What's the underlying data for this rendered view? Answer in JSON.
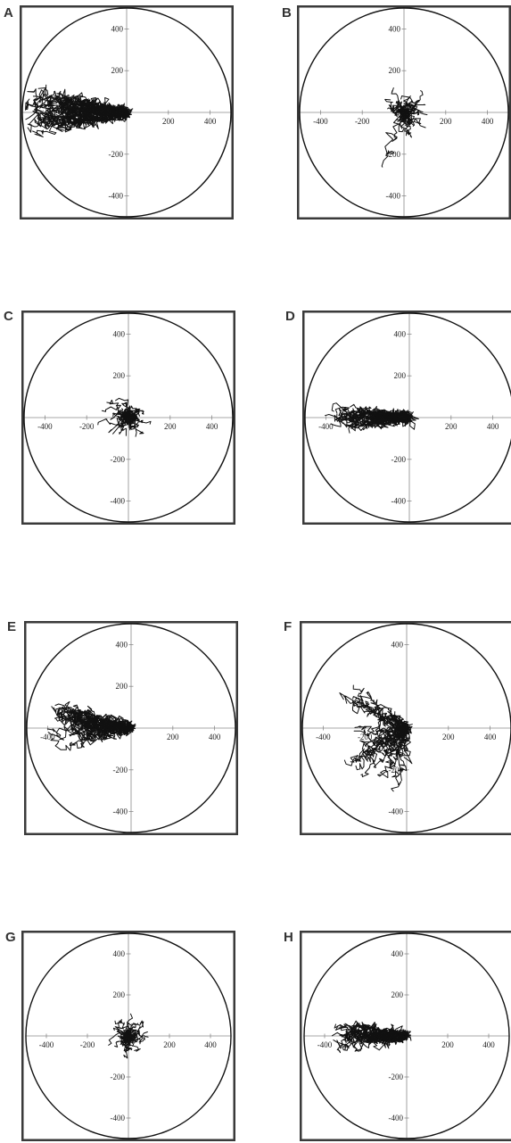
{
  "figure": {
    "colors": {
      "frame": "#3a3a3a",
      "ink": "#111111",
      "axis": "#8a8a8a"
    }
  },
  "chart_data": [
    {
      "panel": "A",
      "type": "line",
      "subtype": "cell-migration-tracks",
      "xlim": [
        -500,
        500
      ],
      "ylim": [
        -500,
        500
      ],
      "xticks": [
        "-400",
        "200",
        "400"
      ],
      "yticks": [
        "400",
        "200",
        "-200",
        "-400"
      ],
      "circle_radius": 500,
      "n_tracks": 40,
      "track_endpoint_direction_deg": 180,
      "track_endpoint_spread_deg": 28,
      "track_length_range": [
        260,
        500
      ],
      "grid": false,
      "legend": "none"
    },
    {
      "panel": "B",
      "type": "line",
      "subtype": "cell-migration-tracks",
      "xlim": [
        -500,
        500
      ],
      "ylim": [
        -500,
        500
      ],
      "xticks": [
        "-400",
        "-200",
        "200",
        "400"
      ],
      "yticks": [
        "400",
        "200",
        "-200",
        "-400"
      ],
      "circle_radius": 500,
      "n_tracks": 40,
      "track_endpoint_direction_deg": 0,
      "track_endpoint_spread_deg": 360,
      "track_length_range": [
        20,
        130
      ],
      "outlier_track_to": [
        -100,
        -250
      ],
      "grid": false,
      "legend": "none"
    },
    {
      "panel": "C",
      "type": "line",
      "subtype": "cell-migration-tracks",
      "xlim": [
        -500,
        500
      ],
      "ylim": [
        -500,
        500
      ],
      "xticks": [
        "-400",
        "-200",
        "200",
        "400"
      ],
      "yticks": [
        "400",
        "200",
        "-200",
        "-400"
      ],
      "circle_radius": 500,
      "n_tracks": 40,
      "track_endpoint_direction_deg": 0,
      "track_endpoint_spread_deg": 360,
      "track_length_range": [
        20,
        130
      ],
      "grid": false,
      "legend": "none"
    },
    {
      "panel": "D",
      "type": "line",
      "subtype": "cell-migration-tracks",
      "xlim": [
        -500,
        500
      ],
      "ylim": [
        -500,
        500
      ],
      "xticks": [
        "-400",
        "200",
        "400"
      ],
      "yticks": [
        "400",
        "200",
        "-200",
        "-400"
      ],
      "circle_radius": 500,
      "n_tracks": 36,
      "track_endpoint_direction_deg": 180,
      "track_endpoint_spread_deg": 20,
      "track_length_range": [
        150,
        380
      ],
      "grid": false,
      "legend": "none"
    },
    {
      "panel": "E",
      "type": "line",
      "subtype": "cell-migration-tracks",
      "xlim": [
        -500,
        500
      ],
      "ylim": [
        -500,
        500
      ],
      "xticks": [
        "-400",
        "200",
        "400"
      ],
      "yticks": [
        "400",
        "200",
        "-200",
        "-400"
      ],
      "circle_radius": 500,
      "n_tracks": 36,
      "track_endpoint_direction_deg": 180,
      "track_endpoint_spread_deg": 35,
      "track_length_range": [
        200,
        400
      ],
      "grid": false,
      "legend": "none"
    },
    {
      "panel": "F",
      "type": "line",
      "subtype": "cell-migration-tracks",
      "xlim": [
        -500,
        500
      ],
      "ylim": [
        -500,
        500
      ],
      "xticks": [
        "-400",
        "-200",
        "200",
        "400"
      ],
      "yticks": [
        "400",
        "-200",
        "-400"
      ],
      "circle_radius": 500,
      "n_tracks": 40,
      "track_endpoint_direction_deg": 200,
      "track_endpoint_spread_deg": 140,
      "track_length_range": [
        60,
        340
      ],
      "grid": false,
      "legend": "none"
    },
    {
      "panel": "G",
      "type": "line",
      "subtype": "cell-migration-tracks",
      "xlim": [
        -500,
        500
      ],
      "ylim": [
        -500,
        500
      ],
      "xticks": [
        "-400",
        "-200",
        "200",
        "400"
      ],
      "yticks": [
        "400",
        "200",
        "-200",
        "-400"
      ],
      "circle_radius": 500,
      "n_tracks": 40,
      "track_endpoint_direction_deg": 0,
      "track_endpoint_spread_deg": 360,
      "track_length_range": [
        20,
        110
      ],
      "grid": false,
      "legend": "none"
    },
    {
      "panel": "H",
      "type": "line",
      "subtype": "cell-migration-tracks",
      "xlim": [
        -500,
        500
      ],
      "ylim": [
        -500,
        500
      ],
      "xticks": [
        "-400",
        "200",
        "400"
      ],
      "yticks": [
        "400",
        "200",
        "-200",
        "-400"
      ],
      "circle_radius": 500,
      "n_tracks": 38,
      "track_endpoint_direction_deg": 180,
      "track_endpoint_spread_deg": 22,
      "track_length_range": [
        40,
        380
      ],
      "grid": false,
      "legend": "none"
    }
  ]
}
